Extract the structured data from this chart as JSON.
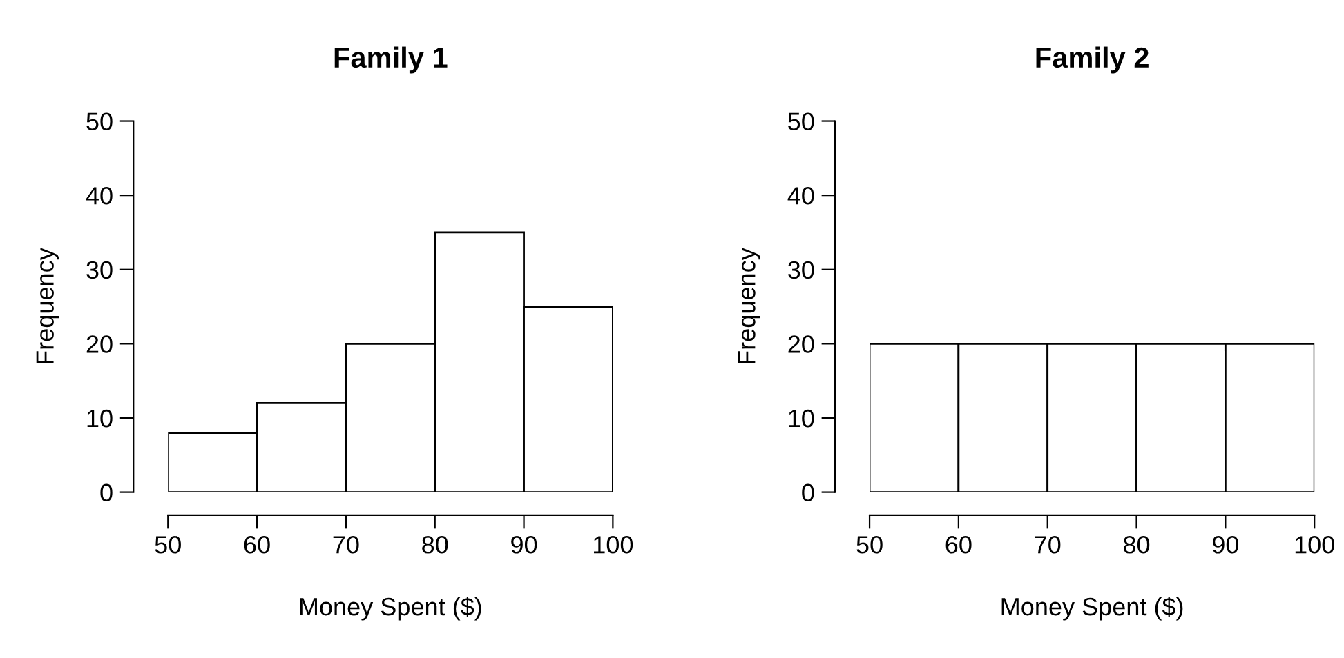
{
  "chart_data": [
    {
      "type": "histogram",
      "title": "Family 1",
      "xlabel": "Money Spent ($)",
      "ylabel": "Frequency",
      "bins": [
        50,
        60,
        70,
        80,
        90,
        100
      ],
      "values": [
        8,
        12,
        20,
        35,
        25
      ],
      "color": "#ffffff",
      "xlim": [
        50,
        100
      ],
      "ylim": [
        0,
        50
      ],
      "xticks": [
        50,
        60,
        70,
        80,
        90,
        100
      ],
      "yticks": [
        0,
        10,
        20,
        30,
        40,
        50
      ]
    },
    {
      "type": "histogram",
      "title": "Family 2",
      "xlabel": "Money Spent ($)",
      "ylabel": "Frequency",
      "bins": [
        50,
        60,
        70,
        80,
        90,
        100
      ],
      "values": [
        20,
        20,
        20,
        20,
        20
      ],
      "color": "#ffffff",
      "xlim": [
        50,
        100
      ],
      "ylim": [
        0,
        50
      ],
      "xticks": [
        50,
        60,
        70,
        80,
        90,
        100
      ],
      "yticks": [
        0,
        10,
        20,
        30,
        40,
        50
      ]
    }
  ]
}
